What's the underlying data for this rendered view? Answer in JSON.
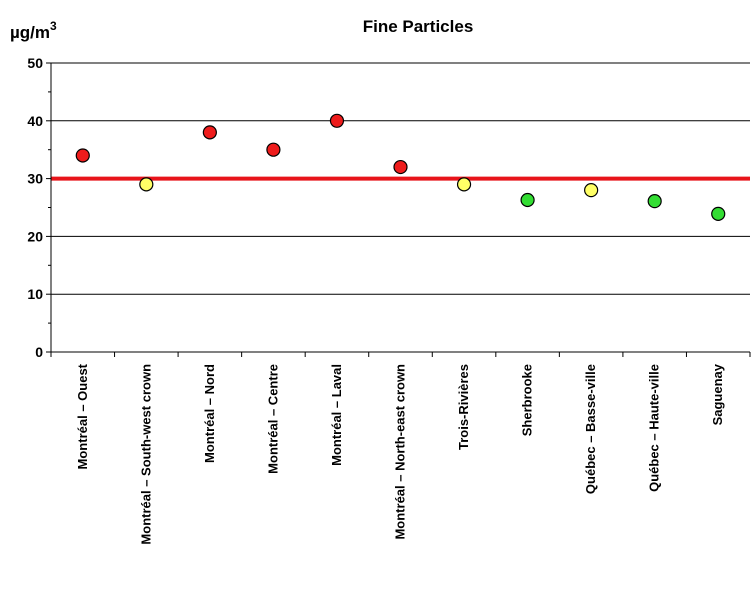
{
  "chart_data": {
    "type": "scatter",
    "title": "Fine Particles",
    "unit_label": "µg/m",
    "unit_superscript": "3",
    "categories": [
      "Montréal – Ouest",
      "Montréal – South-west crown",
      "Montréal – Nord",
      "Montréal – Centre",
      "Montréal – Laval",
      "Montréal – North-east crown",
      "Trois-Rivières",
      "Sherbrooke",
      "Québec – Basse-ville",
      "Québec – Haute-ville",
      "Saguenay"
    ],
    "values": [
      34,
      29,
      38,
      35,
      40,
      32,
      29,
      26.3,
      28,
      26.1,
      23.9
    ],
    "ylim": [
      0,
      50
    ],
    "yticks": [
      "0",
      "10",
      "20",
      "30",
      "40",
      "50"
    ],
    "threshold": 30,
    "threshold_color": "#e8141a",
    "grid": true,
    "colors": {
      "above": "#ee1c1c",
      "near": "#ffff66",
      "below": "#33dd33"
    },
    "point_categories": [
      "above",
      "near",
      "above",
      "above",
      "above",
      "above",
      "near",
      "below",
      "near",
      "below",
      "below"
    ]
  }
}
